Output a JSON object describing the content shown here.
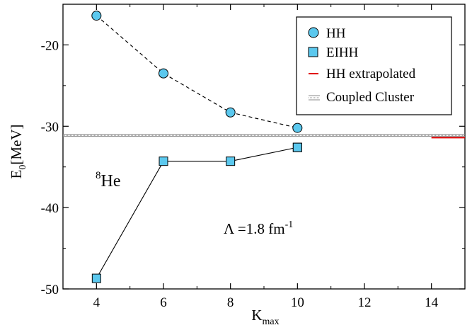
{
  "chart_data": {
    "type": "line",
    "xlabel": {
      "main": "K",
      "sub": "max"
    },
    "ylabel": {
      "main": "E",
      "sub": "0",
      "rest": "[MeV]"
    },
    "xlim": [
      3,
      15
    ],
    "ylim": [
      -50,
      -15
    ],
    "xticks": [
      4,
      6,
      8,
      10,
      12,
      14
    ],
    "yticks": [
      -50,
      -40,
      -30,
      -20
    ],
    "xtick_labels": [
      "4",
      "6",
      "8",
      "10",
      "12",
      "14"
    ],
    "ytick_labels": [
      "-50",
      "-40",
      "-30",
      "-20"
    ],
    "series": [
      {
        "name": "HH",
        "marker": "circle",
        "line": "dashed",
        "color": "#5bc8ee",
        "x": [
          4,
          6,
          8,
          10
        ],
        "y": [
          -16.4,
          -23.5,
          -28.3,
          -30.2
        ]
      },
      {
        "name": "EIHH",
        "marker": "square",
        "line": "solid",
        "color": "#5bc8ee",
        "x": [
          4,
          6,
          8,
          10,
          10
        ],
        "y": [
          -48.7,
          -34.3,
          -34.3,
          -32.6,
          -32.6
        ]
      },
      {
        "name": "HH extrapolated",
        "marker": "none",
        "line": "solid",
        "color": "#e00000",
        "x": [
          14,
          15
        ],
        "y": [
          -31.4,
          -31.4
        ]
      },
      {
        "name": "Coupled Cluster",
        "marker": "none",
        "line": "band",
        "color": "#888888",
        "y_band": [
          -31.0,
          -31.25
        ]
      }
    ],
    "legend_position": "top-right",
    "annotations": [
      {
        "id": "nucleus",
        "sup": "8",
        "text": "He"
      },
      {
        "id": "cutoff",
        "pre": "Λ =1.8 fm",
        "sup": "-1"
      }
    ]
  }
}
